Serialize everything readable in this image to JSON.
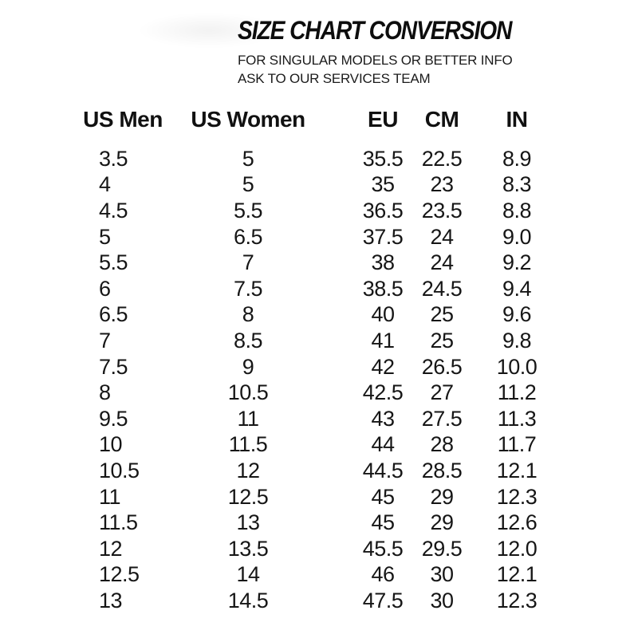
{
  "page": {
    "background_color": "#ffffff",
    "text_color": "#161616",
    "title_color": "#0d0d0d"
  },
  "header": {
    "title": "SIZE CHART CONVERSION",
    "subtitle_line1": "FOR SINGULAR MODELS OR BETTER INFO",
    "subtitle_line2": "ASK TO OUR SERVICES TEAM"
  },
  "chart_data": {
    "type": "table",
    "title": "SIZE CHART CONVERSION",
    "subtitle": "FOR SINGULAR MODELS OR BETTER INFO ASK TO OUR SERVICES TEAM",
    "columns": [
      "US Men",
      "US Women",
      "EU",
      "CM",
      "IN"
    ],
    "rows": [
      [
        "3.5",
        "5",
        "35.5",
        "22.5",
        "8.9"
      ],
      [
        "4",
        "5",
        "35",
        "23",
        "8.3"
      ],
      [
        "4.5",
        "5.5",
        "36.5",
        "23.5",
        "8.8"
      ],
      [
        "5",
        "6.5",
        "37.5",
        "24",
        "9.0"
      ],
      [
        "5.5",
        "7",
        "38",
        "24",
        "9.2"
      ],
      [
        "6",
        "7.5",
        "38.5",
        "24.5",
        "9.4"
      ],
      [
        "6.5",
        "8",
        "40",
        "25",
        "9.6"
      ],
      [
        "7",
        "8.5",
        "41",
        "25",
        "9.8"
      ],
      [
        "7.5",
        "9",
        "42",
        "26.5",
        "10.0"
      ],
      [
        "8",
        "10.5",
        "42.5",
        "27",
        "11.2"
      ],
      [
        "9.5",
        "11",
        "43",
        "27.5",
        "11.3"
      ],
      [
        "10",
        "11.5",
        "44",
        "28",
        "11.7"
      ],
      [
        "10.5",
        "12",
        "44.5",
        "28.5",
        "12.1"
      ],
      [
        "11",
        "12.5",
        "45",
        "29",
        "12.3"
      ],
      [
        "11.5",
        "13",
        "45",
        "29",
        "12.6"
      ],
      [
        "12",
        "13.5",
        "45.5",
        "29.5",
        "12.0"
      ],
      [
        "12.5",
        "14",
        "46",
        "30",
        "12.1"
      ],
      [
        "13",
        "14.5",
        "47.5",
        "30",
        "12.3"
      ]
    ]
  }
}
